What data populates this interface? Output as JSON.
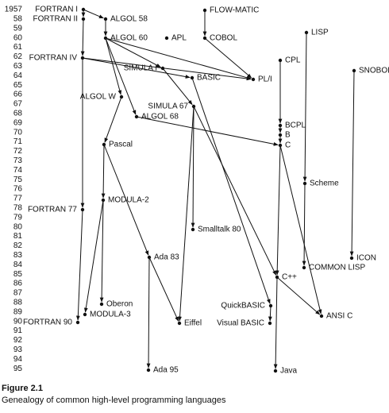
{
  "years": [
    "1957",
    "58",
    "59",
    "60",
    "61",
    "62",
    "63",
    "64",
    "65",
    "66",
    "67",
    "68",
    "69",
    "70",
    "71",
    "72",
    "73",
    "74",
    "75",
    "76",
    "77",
    "78",
    "79",
    "80",
    "81",
    "82",
    "83",
    "84",
    "85",
    "86",
    "87",
    "88",
    "89",
    "90",
    "91",
    "92",
    "93",
    "94",
    "95"
  ],
  "nodes": [
    {
      "label": "FORTRAN I"
    },
    {
      "label": "FORTRAN II"
    },
    {
      "label": "ALGOL 58"
    },
    {
      "label": "ALGOL 60"
    },
    {
      "label": "APL"
    },
    {
      "label": "FLOW-MATIC"
    },
    {
      "label": "COBOL"
    },
    {
      "label": "LISP"
    },
    {
      "label": "FORTRAN IV"
    },
    {
      "label": "CPL"
    },
    {
      "label": "SNOBOL"
    },
    {
      "label": "SIMULA I"
    },
    {
      "label": "BASIC"
    },
    {
      "label": "PL/I"
    },
    {
      "label": "ALGOL W"
    },
    {
      "label": "SIMULA 67"
    },
    {
      "label": "ALGOL 68"
    },
    {
      "label": "BCPL"
    },
    {
      "label": "B"
    },
    {
      "label": "C"
    },
    {
      "label": "Pascal"
    },
    {
      "label": "Scheme"
    },
    {
      "label": "MODULA-2"
    },
    {
      "label": "FORTRAN 77"
    },
    {
      "label": "Smalltalk 80"
    },
    {
      "label": "Ada 83"
    },
    {
      "label": "ICON"
    },
    {
      "label": "COMMON LISP"
    },
    {
      "label": "C++"
    },
    {
      "label": "Oberon"
    },
    {
      "label": "QuickBASIC"
    },
    {
      "label": "MODULA-3"
    },
    {
      "label": "ANSI C"
    },
    {
      "label": "FORTRAN 90"
    },
    {
      "label": "Eiffel"
    },
    {
      "label": "Visual BASIC"
    },
    {
      "label": "Ada 95"
    },
    {
      "label": "Java"
    }
  ],
  "caption": {
    "figure": "Figure 2.1",
    "text": "Genealogy of common high-level programming languages"
  }
}
